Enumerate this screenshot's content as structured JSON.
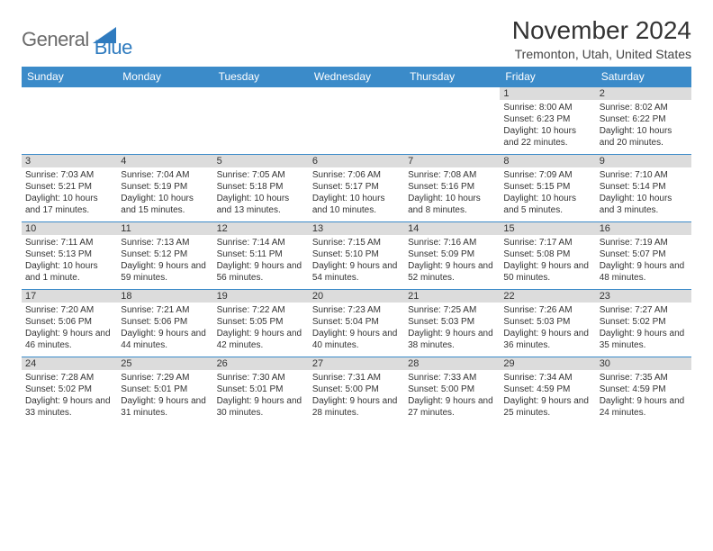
{
  "logo": {
    "general": "General",
    "blue": "Blue"
  },
  "title": "November 2024",
  "location": "Tremonton, Utah, United States",
  "colors": {
    "header_bg": "#3b8bc9",
    "daynum_bg": "#dcdcdc",
    "border": "#3b8bc9",
    "logo_gray": "#6b6b6b",
    "logo_blue": "#2f7bbf"
  },
  "weekdays": [
    "Sunday",
    "Monday",
    "Tuesday",
    "Wednesday",
    "Thursday",
    "Friday",
    "Saturday"
  ],
  "weeks": [
    [
      null,
      null,
      null,
      null,
      null,
      {
        "n": "1",
        "sr": "8:00 AM",
        "ss": "6:23 PM",
        "dl": "10 hours and 22 minutes."
      },
      {
        "n": "2",
        "sr": "8:02 AM",
        "ss": "6:22 PM",
        "dl": "10 hours and 20 minutes."
      }
    ],
    [
      {
        "n": "3",
        "sr": "7:03 AM",
        "ss": "5:21 PM",
        "dl": "10 hours and 17 minutes."
      },
      {
        "n": "4",
        "sr": "7:04 AM",
        "ss": "5:19 PM",
        "dl": "10 hours and 15 minutes."
      },
      {
        "n": "5",
        "sr": "7:05 AM",
        "ss": "5:18 PM",
        "dl": "10 hours and 13 minutes."
      },
      {
        "n": "6",
        "sr": "7:06 AM",
        "ss": "5:17 PM",
        "dl": "10 hours and 10 minutes."
      },
      {
        "n": "7",
        "sr": "7:08 AM",
        "ss": "5:16 PM",
        "dl": "10 hours and 8 minutes."
      },
      {
        "n": "8",
        "sr": "7:09 AM",
        "ss": "5:15 PM",
        "dl": "10 hours and 5 minutes."
      },
      {
        "n": "9",
        "sr": "7:10 AM",
        "ss": "5:14 PM",
        "dl": "10 hours and 3 minutes."
      }
    ],
    [
      {
        "n": "10",
        "sr": "7:11 AM",
        "ss": "5:13 PM",
        "dl": "10 hours and 1 minute."
      },
      {
        "n": "11",
        "sr": "7:13 AM",
        "ss": "5:12 PM",
        "dl": "9 hours and 59 minutes."
      },
      {
        "n": "12",
        "sr": "7:14 AM",
        "ss": "5:11 PM",
        "dl": "9 hours and 56 minutes."
      },
      {
        "n": "13",
        "sr": "7:15 AM",
        "ss": "5:10 PM",
        "dl": "9 hours and 54 minutes."
      },
      {
        "n": "14",
        "sr": "7:16 AM",
        "ss": "5:09 PM",
        "dl": "9 hours and 52 minutes."
      },
      {
        "n": "15",
        "sr": "7:17 AM",
        "ss": "5:08 PM",
        "dl": "9 hours and 50 minutes."
      },
      {
        "n": "16",
        "sr": "7:19 AM",
        "ss": "5:07 PM",
        "dl": "9 hours and 48 minutes."
      }
    ],
    [
      {
        "n": "17",
        "sr": "7:20 AM",
        "ss": "5:06 PM",
        "dl": "9 hours and 46 minutes."
      },
      {
        "n": "18",
        "sr": "7:21 AM",
        "ss": "5:06 PM",
        "dl": "9 hours and 44 minutes."
      },
      {
        "n": "19",
        "sr": "7:22 AM",
        "ss": "5:05 PM",
        "dl": "9 hours and 42 minutes."
      },
      {
        "n": "20",
        "sr": "7:23 AM",
        "ss": "5:04 PM",
        "dl": "9 hours and 40 minutes."
      },
      {
        "n": "21",
        "sr": "7:25 AM",
        "ss": "5:03 PM",
        "dl": "9 hours and 38 minutes."
      },
      {
        "n": "22",
        "sr": "7:26 AM",
        "ss": "5:03 PM",
        "dl": "9 hours and 36 minutes."
      },
      {
        "n": "23",
        "sr": "7:27 AM",
        "ss": "5:02 PM",
        "dl": "9 hours and 35 minutes."
      }
    ],
    [
      {
        "n": "24",
        "sr": "7:28 AM",
        "ss": "5:02 PM",
        "dl": "9 hours and 33 minutes."
      },
      {
        "n": "25",
        "sr": "7:29 AM",
        "ss": "5:01 PM",
        "dl": "9 hours and 31 minutes."
      },
      {
        "n": "26",
        "sr": "7:30 AM",
        "ss": "5:01 PM",
        "dl": "9 hours and 30 minutes."
      },
      {
        "n": "27",
        "sr": "7:31 AM",
        "ss": "5:00 PM",
        "dl": "9 hours and 28 minutes."
      },
      {
        "n": "28",
        "sr": "7:33 AM",
        "ss": "5:00 PM",
        "dl": "9 hours and 27 minutes."
      },
      {
        "n": "29",
        "sr": "7:34 AM",
        "ss": "4:59 PM",
        "dl": "9 hours and 25 minutes."
      },
      {
        "n": "30",
        "sr": "7:35 AM",
        "ss": "4:59 PM",
        "dl": "9 hours and 24 minutes."
      }
    ]
  ],
  "labels": {
    "sunrise": "Sunrise: ",
    "sunset": "Sunset: ",
    "daylight": "Daylight: "
  }
}
